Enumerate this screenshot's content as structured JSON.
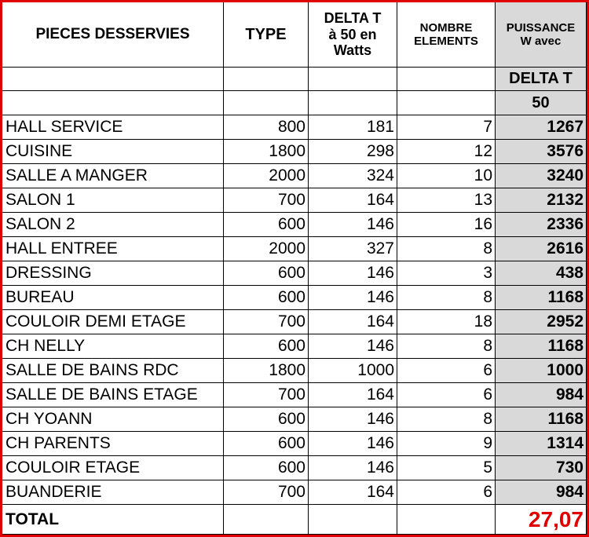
{
  "table": {
    "header": [
      [
        "PIECES DESSERVIES"
      ],
      [
        "TYPE"
      ],
      [
        "DELTA T",
        "à 50 en",
        "Watts"
      ],
      [
        "NOMBRE",
        "ELEMENTS"
      ],
      [
        "PUISSANCE",
        "W avec"
      ]
    ],
    "subheader": [
      "DELTA T",
      "50"
    ],
    "rows": [
      [
        "HALL SERVICE",
        800,
        181,
        7,
        1267
      ],
      [
        "CUISINE",
        1800,
        298,
        12,
        3576
      ],
      [
        "SALLE A MANGER",
        2000,
        324,
        10,
        3240
      ],
      [
        "SALON 1",
        700,
        164,
        13,
        2132
      ],
      [
        "SALON 2",
        600,
        146,
        16,
        2336
      ],
      [
        "HALL ENTREE",
        2000,
        327,
        8,
        2616
      ],
      [
        "DRESSING",
        600,
        146,
        3,
        438
      ],
      [
        "BUREAU",
        600,
        146,
        8,
        1168
      ],
      [
        "COULOIR DEMI ETAGE",
        700,
        164,
        18,
        2952
      ],
      [
        "CH NELLY",
        600,
        146,
        8,
        1168
      ],
      [
        "SALLE DE BAINS RDC",
        1800,
        1000,
        6,
        1000
      ],
      [
        "SALLE DE BAINS ETAGE",
        700,
        164,
        6,
        984
      ],
      [
        "CH YOANN",
        600,
        146,
        8,
        1168
      ],
      [
        "CH PARENTS",
        600,
        146,
        9,
        1314
      ],
      [
        "COULOIR ETAGE",
        600,
        146,
        5,
        730
      ],
      [
        "BUANDERIE",
        700,
        164,
        6,
        984
      ]
    ],
    "total": {
      "label": "TOTAL",
      "value": "27,07"
    }
  }
}
